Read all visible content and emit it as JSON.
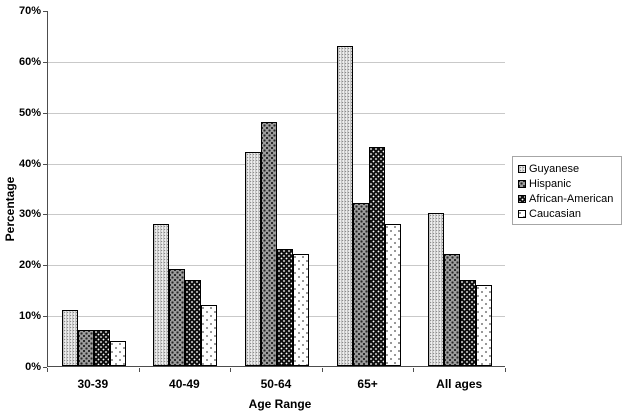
{
  "chart_data": {
    "type": "bar",
    "title": "",
    "xlabel": "Age Range",
    "ylabel": "Percentage",
    "categories": [
      "30-39",
      "40-49",
      "50-64",
      "65+",
      "All ages"
    ],
    "series": [
      {
        "name": "Guyanese",
        "values": [
          11,
          28,
          42,
          63,
          30
        ],
        "pattern": "light-gray-dotted-vertical"
      },
      {
        "name": "Hispanic",
        "values": [
          7,
          19,
          48,
          32,
          22
        ],
        "pattern": "gray-dark-checker-dots"
      },
      {
        "name": "African-American",
        "values": [
          7,
          17,
          23,
          43,
          17
        ],
        "pattern": "black-white-dots"
      },
      {
        "name": "Caucasian",
        "values": [
          5,
          12,
          22,
          28,
          16
        ],
        "pattern": "white-sparse-dots"
      }
    ],
    "ylim": [
      0,
      70
    ],
    "ytick_step": 10,
    "ytick_suffix": "%",
    "grid": true,
    "legend_position": "right",
    "colors": {
      "axis": "#4d4d4d",
      "grid": "#c9c9c9",
      "bar_border": "#000000",
      "text": "#000000",
      "legend_border": "#a6a6a6",
      "background": "#ffffff"
    }
  }
}
